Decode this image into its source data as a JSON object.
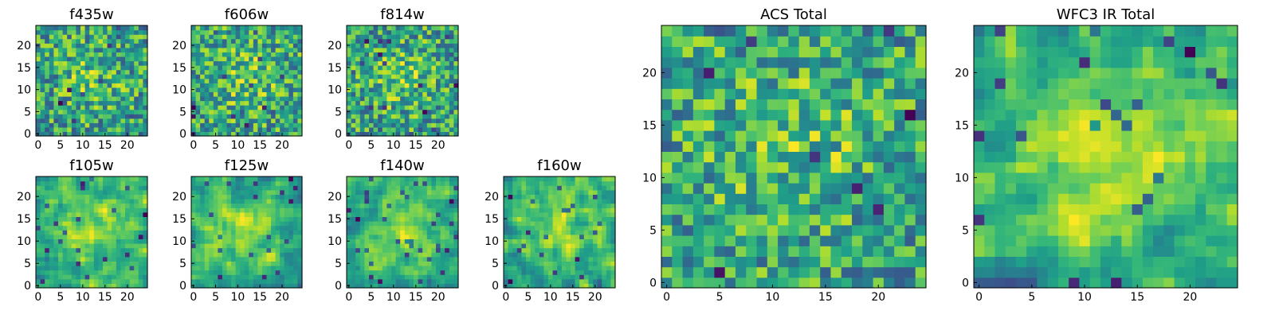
{
  "chart_data": [
    {
      "type": "heatmap",
      "title": "f435w",
      "size": 25,
      "xticks": [
        0,
        5,
        10,
        15,
        20
      ],
      "yticks": [
        0,
        5,
        10,
        15,
        20
      ],
      "colormap": "viridis",
      "seed": 11,
      "smooth": 0,
      "values": []
    },
    {
      "type": "heatmap",
      "title": "f606w",
      "size": 25,
      "xticks": [
        0,
        5,
        10,
        15,
        20
      ],
      "yticks": [
        0,
        5,
        10,
        15,
        20
      ],
      "colormap": "viridis",
      "seed": 23,
      "smooth": 0,
      "values": []
    },
    {
      "type": "heatmap",
      "title": "f814w",
      "size": 25,
      "xticks": [
        0,
        5,
        10,
        15,
        20
      ],
      "yticks": [
        0,
        5,
        10,
        15,
        20
      ],
      "colormap": "viridis",
      "seed": 37,
      "smooth": 0,
      "values": []
    },
    {
      "type": "heatmap",
      "title": "f105w",
      "size": 25,
      "xticks": [
        0,
        5,
        10,
        15,
        20
      ],
      "yticks": [
        0,
        5,
        10,
        15,
        20
      ],
      "colormap": "viridis",
      "seed": 41,
      "smooth": 1,
      "values": []
    },
    {
      "type": "heatmap",
      "title": "f125w",
      "size": 25,
      "xticks": [
        0,
        5,
        10,
        15,
        20
      ],
      "yticks": [
        0,
        5,
        10,
        15,
        20
      ],
      "colormap": "viridis",
      "seed": 53,
      "smooth": 1,
      "values": []
    },
    {
      "type": "heatmap",
      "title": "f140w",
      "size": 25,
      "xticks": [
        0,
        5,
        10,
        15,
        20
      ],
      "yticks": [
        0,
        5,
        10,
        15,
        20
      ],
      "colormap": "viridis",
      "seed": 67,
      "smooth": 1,
      "values": []
    },
    {
      "type": "heatmap",
      "title": "f160w",
      "size": 25,
      "xticks": [
        0,
        5,
        10,
        15,
        20
      ],
      "yticks": [
        0,
        5,
        10,
        15,
        20
      ],
      "colormap": "viridis",
      "seed": 79,
      "smooth": 1,
      "values": []
    },
    {
      "type": "heatmap",
      "title": "ACS Total",
      "size": 25,
      "xticks": [
        0,
        5,
        10,
        15,
        20
      ],
      "yticks": [
        0,
        5,
        10,
        15,
        20
      ],
      "colormap": "viridis",
      "seed": 83,
      "smooth": 0,
      "values": []
    },
    {
      "type": "heatmap",
      "title": "WFC3 IR Total",
      "size": 25,
      "xticks": [
        0,
        5,
        10,
        15,
        20
      ],
      "yticks": [
        0,
        5,
        10,
        15,
        20
      ],
      "colormap": "viridis",
      "seed": 97,
      "smooth": 1,
      "values": []
    }
  ]
}
